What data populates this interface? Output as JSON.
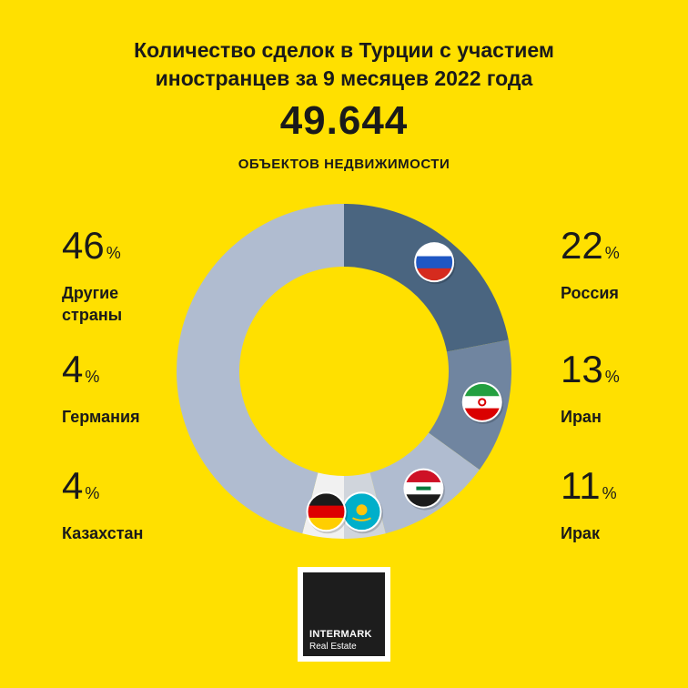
{
  "header": {
    "title_line1": "Количество сделок в Турции с участием",
    "title_line2": "иностранцев за 9 месяцев 2022 года",
    "total": "49.644",
    "total_label": "ОБЪЕКТОВ  НЕДВИЖИМОСТИ"
  },
  "chart_data": {
    "type": "pie",
    "variant": "donut",
    "title": "Количество сделок в Турции с участием иностранцев за 9 месяцев 2022 года",
    "total": 49644,
    "unit": "%",
    "slices": [
      {
        "label": "Россия",
        "value": 22,
        "color": "#4A6580",
        "flag": "russia-flag"
      },
      {
        "label": "Иран",
        "value": 13,
        "color": "#7085A0",
        "flag": "iran-flag"
      },
      {
        "label": "Ирак",
        "value": 11,
        "color": "#B0BCD0",
        "flag": "iraq-flag"
      },
      {
        "label": "Казахстан",
        "value": 4,
        "color": "#D0D5DC",
        "flag": "kazakhstan-flag"
      },
      {
        "label": "Германия",
        "value": 4,
        "color": "#F1F1F1",
        "flag": "germany-flag"
      },
      {
        "label": "Другие страны",
        "value": 46,
        "color": "#B0BCD0"
      }
    ]
  },
  "legend": {
    "left": [
      {
        "value": "46",
        "sign": "%",
        "name_line1": "Другие",
        "name_line2": "страны"
      },
      {
        "value": "4",
        "sign": "%",
        "name_line1": "Германия",
        "name_line2": ""
      },
      {
        "value": "4",
        "sign": "%",
        "name_line1": "Казахстан",
        "name_line2": ""
      }
    ],
    "right": [
      {
        "value": "22",
        "sign": "%",
        "name_line1": "Россия",
        "name_line2": ""
      },
      {
        "value": "13",
        "sign": "%",
        "name_line1": "Иран",
        "name_line2": ""
      },
      {
        "value": "11",
        "sign": "%",
        "name_line1": "Ирак",
        "name_line2": ""
      }
    ]
  },
  "logo": {
    "name": "INTERMARK",
    "sub": "Real Estate"
  }
}
